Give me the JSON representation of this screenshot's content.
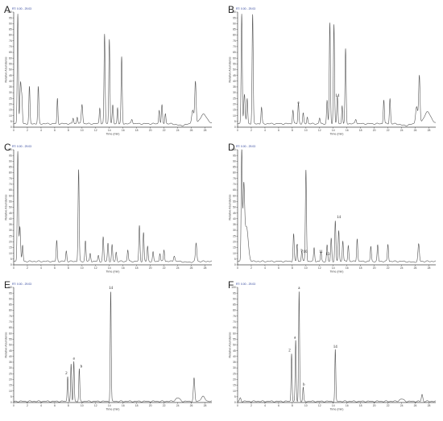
{
  "chart_data": [
    {
      "type": "line",
      "panel": "A",
      "header": "RT: 0.00 - 29.03",
      "xlabel": "Time (min)",
      "ylabel": "Relative Abundance",
      "xlim": [
        0,
        29
      ],
      "ylim": [
        0,
        100
      ],
      "xticks": [
        0,
        2,
        4,
        6,
        8,
        10,
        12,
        14,
        16,
        18,
        20,
        22,
        24,
        26,
        28
      ],
      "yticks": [
        0,
        5,
        10,
        15,
        20,
        25,
        30,
        35,
        40,
        45,
        50,
        55,
        60,
        65,
        70,
        75,
        80,
        85,
        90,
        95,
        100
      ],
      "baseline": 3,
      "peaks": [
        [
          0.6,
          96,
          0.08
        ],
        [
          1.0,
          35,
          0.1
        ],
        [
          1.2,
          20,
          0.08
        ],
        [
          2.3,
          32,
          0.08
        ],
        [
          3.6,
          32,
          0.08
        ],
        [
          6.4,
          22,
          0.07
        ],
        [
          8.7,
          5,
          0.08
        ],
        [
          9.3,
          6,
          0.08
        ],
        [
          10.0,
          17,
          0.1
        ],
        [
          12.6,
          14,
          0.08
        ],
        [
          13.3,
          78,
          0.08
        ],
        [
          14.0,
          74,
          0.08
        ],
        [
          14.5,
          16,
          0.08
        ],
        [
          15.2,
          14,
          0.07
        ],
        [
          15.8,
          58,
          0.08
        ],
        [
          17.3,
          4,
          0.1
        ],
        [
          21.3,
          12,
          0.08
        ],
        [
          21.7,
          16,
          0.08
        ],
        [
          22.2,
          9,
          0.08
        ],
        [
          26.6,
          36,
          0.1
        ],
        [
          26.2,
          12,
          0.15
        ],
        [
          27.8,
          8,
          0.5
        ]
      ],
      "dip": [
        24.5,
        1.5,
        0.6
      ],
      "labels": []
    },
    {
      "type": "line",
      "panel": "B",
      "header": "RT: 0.00 - 29.03",
      "xlabel": "Time (min)",
      "ylabel": "Relative Abundance",
      "xlim": [
        0,
        29
      ],
      "ylim": [
        0,
        100
      ],
      "xticks": [
        0,
        2,
        4,
        6,
        8,
        10,
        12,
        14,
        16,
        18,
        20,
        22,
        24,
        26,
        28
      ],
      "yticks": [
        0,
        5,
        10,
        15,
        20,
        25,
        30,
        35,
        40,
        45,
        50,
        55,
        60,
        65,
        70,
        75,
        80,
        85,
        90,
        95,
        100
      ],
      "baseline": 3,
      "peaks": [
        [
          0.6,
          96,
          0.08
        ],
        [
          1.0,
          25,
          0.1
        ],
        [
          1.4,
          22,
          0.08
        ],
        [
          2.2,
          95,
          0.08
        ],
        [
          3.5,
          14,
          0.08
        ],
        [
          8.1,
          12,
          0.08
        ],
        [
          8.9,
          18,
          0.08
        ],
        [
          9.6,
          9,
          0.08
        ],
        [
          10.2,
          6,
          0.08
        ],
        [
          12.0,
          5,
          0.08
        ],
        [
          13.1,
          20,
          0.08
        ],
        [
          13.5,
          88,
          0.08
        ],
        [
          14.1,
          87,
          0.08
        ],
        [
          14.6,
          24,
          0.08
        ],
        [
          15.3,
          16,
          0.07
        ],
        [
          15.8,
          65,
          0.08
        ],
        [
          17.3,
          4,
          0.1
        ],
        [
          21.4,
          21,
          0.08
        ],
        [
          22.3,
          22,
          0.08
        ],
        [
          26.6,
          41,
          0.1
        ],
        [
          26.2,
          15,
          0.15
        ],
        [
          27.8,
          10,
          0.5
        ]
      ],
      "dip": [
        24.5,
        1.5,
        0.6
      ],
      "labels": [
        {
          "text": "a",
          "x": 8.9,
          "y": 20
        },
        {
          "text": "14",
          "x": 14.6,
          "y": 26
        }
      ]
    },
    {
      "type": "line",
      "panel": "C",
      "header": "RT: 0.00 - 29.03",
      "xlabel": "Time (min)",
      "ylabel": "Relative Abundance",
      "xlim": [
        0,
        29
      ],
      "ylim": [
        0,
        100
      ],
      "xticks": [
        0,
        2,
        4,
        6,
        8,
        10,
        12,
        14,
        16,
        18,
        20,
        22,
        24,
        26,
        28
      ],
      "yticks": [
        0,
        5,
        10,
        15,
        20,
        25,
        30,
        35,
        40,
        45,
        50,
        55,
        60,
        65,
        70,
        75,
        80,
        85,
        90,
        95,
        100
      ],
      "baseline": 3,
      "peaks": [
        [
          0.6,
          96,
          0.08
        ],
        [
          0.9,
          30,
          0.1
        ],
        [
          1.3,
          14,
          0.08
        ],
        [
          6.3,
          18,
          0.08
        ],
        [
          7.7,
          9,
          0.08
        ],
        [
          9.5,
          80,
          0.08
        ],
        [
          10.5,
          18,
          0.08
        ],
        [
          11.2,
          7,
          0.08
        ],
        [
          12.4,
          5,
          0.08
        ],
        [
          13.1,
          21,
          0.08
        ],
        [
          13.8,
          16,
          0.08
        ],
        [
          14.4,
          14,
          0.08
        ],
        [
          15.0,
          8,
          0.08
        ],
        [
          16.7,
          10,
          0.08
        ],
        [
          18.4,
          31,
          0.08
        ],
        [
          19.0,
          25,
          0.08
        ],
        [
          19.6,
          13,
          0.08
        ],
        [
          20.4,
          8,
          0.08
        ],
        [
          21.4,
          7,
          0.08
        ],
        [
          22.0,
          10,
          0.08
        ],
        [
          23.5,
          5,
          0.1
        ],
        [
          26.7,
          16,
          0.1
        ]
      ],
      "dip": [
        25.5,
        0.8,
        0.5
      ],
      "labels": []
    },
    {
      "type": "line",
      "panel": "D",
      "header": "RT: 0.00 - 29.03",
      "xlabel": "Time (min)",
      "ylabel": "Relative Abundance",
      "xlim": [
        0,
        29
      ],
      "ylim": [
        0,
        100
      ],
      "xticks": [
        0,
        2,
        4,
        6,
        8,
        10,
        12,
        14,
        16,
        18,
        20,
        22,
        24,
        26,
        28
      ],
      "yticks": [
        0,
        5,
        10,
        15,
        20,
        25,
        30,
        35,
        40,
        45,
        50,
        55,
        60,
        65,
        70,
        75,
        80,
        85,
        90,
        95,
        100
      ],
      "baseline": 3,
      "peaks": [
        [
          0.6,
          96,
          0.08
        ],
        [
          0.9,
          60,
          0.12
        ],
        [
          1.3,
          30,
          0.25
        ],
        [
          8.2,
          24,
          0.08
        ],
        [
          8.7,
          14,
          0.07
        ],
        [
          9.4,
          9,
          0.08
        ],
        [
          10.0,
          80,
          0.08
        ],
        [
          11.2,
          12,
          0.08
        ],
        [
          12.2,
          8,
          0.08
        ],
        [
          13.1,
          14,
          0.08
        ],
        [
          13.7,
          20,
          0.08
        ],
        [
          14.3,
          35,
          0.08
        ],
        [
          14.8,
          27,
          0.08
        ],
        [
          15.4,
          18,
          0.08
        ],
        [
          16.2,
          14,
          0.08
        ],
        [
          17.5,
          20,
          0.08
        ],
        [
          19.5,
          13,
          0.08
        ],
        [
          20.5,
          14,
          0.08
        ],
        [
          22.0,
          15,
          0.08
        ],
        [
          26.5,
          15,
          0.1
        ]
      ],
      "dip": [
        25.5,
        0.6,
        0.5
      ],
      "labels": [
        {
          "text": "a",
          "x": 8.7,
          "y": 16
        },
        {
          "text": "b",
          "x": 9.4,
          "y": 11
        },
        {
          "text": "10",
          "x": 9.9,
          "y": 10
        },
        {
          "text": "11",
          "x": 12.2,
          "y": 10
        },
        {
          "text": "13",
          "x": 13.2,
          "y": 8
        },
        {
          "text": "14",
          "x": 14.8,
          "y": 40
        }
      ]
    },
    {
      "type": "line",
      "panel": "E",
      "header": "RT: 0.00 - 29.03",
      "xlabel": "Time (min)",
      "ylabel": "Relative Abundance",
      "xlim": [
        0,
        29
      ],
      "ylim": [
        0,
        100
      ],
      "xticks": [
        0,
        2,
        4,
        6,
        8,
        10,
        12,
        14,
        16,
        18,
        20,
        22,
        24,
        26,
        28
      ],
      "yticks": [
        0,
        5,
        10,
        15,
        20,
        25,
        30,
        35,
        40,
        45,
        50,
        55,
        60,
        65,
        70,
        75,
        80,
        85,
        90,
        95,
        100
      ],
      "baseline": 1,
      "peaks": [
        [
          7.9,
          22,
          0.07
        ],
        [
          8.4,
          32,
          0.07
        ],
        [
          8.8,
          35,
          0.07
        ],
        [
          9.6,
          28,
          0.07
        ],
        [
          14.2,
          96,
          0.07
        ],
        [
          24.0,
          3,
          0.3
        ],
        [
          26.4,
          20,
          0.1
        ],
        [
          27.7,
          4,
          0.3
        ]
      ],
      "dip": [
        0,
        0,
        1
      ],
      "labels": [
        {
          "text": "2",
          "x": 7.7,
          "y": 24
        },
        {
          "text": "a",
          "x": 8.8,
          "y": 37
        },
        {
          "text": "b",
          "x": 9.9,
          "y": 30
        },
        {
          "text": "14",
          "x": 14.2,
          "y": 98
        }
      ]
    },
    {
      "type": "line",
      "panel": "F",
      "header": "RT: 0.00 - 29.03",
      "xlabel": "Time (min)",
      "ylabel": "Relative Abundance",
      "xlim": [
        0,
        29
      ],
      "ylim": [
        0,
        100
      ],
      "xticks": [
        0,
        2,
        4,
        6,
        8,
        10,
        12,
        14,
        16,
        18,
        20,
        22,
        24,
        26,
        28
      ],
      "yticks": [
        0,
        5,
        10,
        15,
        20,
        25,
        30,
        35,
        40,
        45,
        50,
        55,
        60,
        65,
        70,
        75,
        80,
        85,
        90,
        95,
        100
      ],
      "baseline": 1,
      "peaks": [
        [
          0.4,
          3,
          0.1
        ],
        [
          7.9,
          42,
          0.07
        ],
        [
          8.5,
          53,
          0.07
        ],
        [
          9.0,
          96,
          0.07
        ],
        [
          9.6,
          12,
          0.07
        ],
        [
          14.3,
          45,
          0.07
        ],
        [
          24.0,
          2,
          0.3
        ],
        [
          27.0,
          6,
          0.1
        ]
      ],
      "dip": [
        0,
        0,
        1
      ],
      "labels": [
        {
          "text": "2",
          "x": 7.6,
          "y": 44
        },
        {
          "text": "a",
          "x": 8.4,
          "y": 55
        },
        {
          "text": "a",
          "x": 9.0,
          "y": 98
        },
        {
          "text": "b",
          "x": 9.7,
          "y": 14
        },
        {
          "text": "14",
          "x": 14.3,
          "y": 47
        }
      ]
    }
  ]
}
